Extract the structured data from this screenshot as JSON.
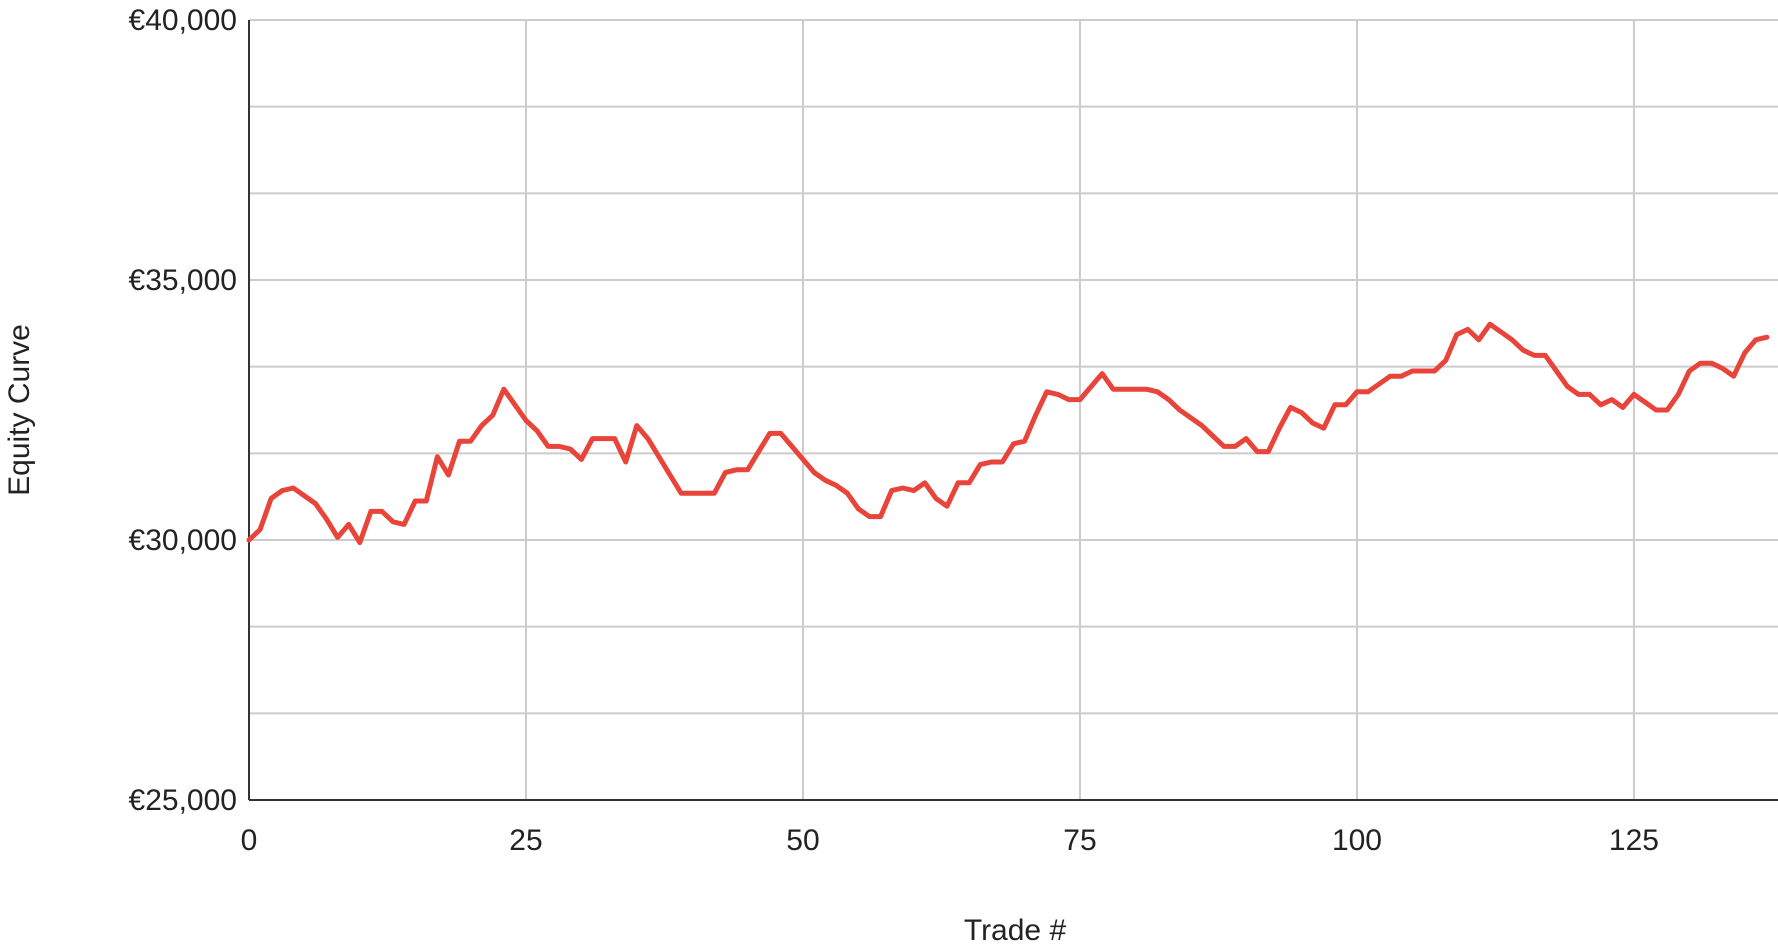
{
  "chart_data": {
    "type": "line",
    "title": "",
    "xlabel": "Trade #",
    "ylabel": "Equity Curve",
    "xlim": [
      0,
      138
    ],
    "ylim": [
      25000,
      40000
    ],
    "x_ticks": [
      0,
      25,
      50,
      75,
      100,
      125
    ],
    "x_tick_labels": [
      "0",
      "25",
      "50",
      "75",
      "100",
      "125"
    ],
    "y_ticks": [
      25000,
      30000,
      35000,
      40000
    ],
    "y_tick_labels": [
      "€25,000",
      "€30,000",
      "€35,000",
      "€40,000"
    ],
    "grid": true,
    "legend": "none",
    "colors": {
      "line": "#e8443a",
      "grid": "#cccccc",
      "axis": "#333333"
    },
    "series": [
      {
        "values": [
          30000,
          30200,
          30800,
          30950,
          31000,
          30850,
          30700,
          30400,
          30050,
          30300,
          29950,
          30550,
          30550,
          30350,
          30300,
          30750,
          30750,
          31600,
          31250,
          31900,
          31900,
          32200,
          32400,
          32900,
          32600,
          32300,
          32100,
          31800,
          31800,
          31750,
          31550,
          31950,
          31950,
          31950,
          31500,
          32200,
          31950,
          31600,
          31250,
          30900,
          30900,
          30900,
          30900,
          31300,
          31350,
          31350,
          31700,
          32050,
          32050,
          31800,
          31550,
          31300,
          31150,
          31050,
          30900,
          30600,
          30450,
          30450,
          30950,
          31000,
          30950,
          31100,
          30800,
          30650,
          31100,
          31100,
          31450,
          31500,
          31500,
          31850,
          31900,
          32400,
          32850,
          32800,
          32700,
          32700,
          32950,
          33200,
          32900,
          32900,
          32900,
          32900,
          32850,
          32700,
          32500,
          32350,
          32200,
          32000,
          31800,
          31800,
          31950,
          31700,
          31700,
          32150,
          32550,
          32450,
          32250,
          32150,
          32600,
          32600,
          32850,
          32850,
          33000,
          33150,
          33150,
          33250,
          33250,
          33250,
          33450,
          33950,
          34050,
          33850,
          34150,
          34000,
          33850,
          33650,
          33550,
          33550,
          33250,
          32950,
          32800,
          32800,
          32600,
          32700,
          32550,
          32800,
          32650,
          32500,
          32500,
          32800,
          33250,
          33400,
          33400,
          33300,
          33150,
          33600,
          33850,
          33900
        ]
      }
    ]
  }
}
